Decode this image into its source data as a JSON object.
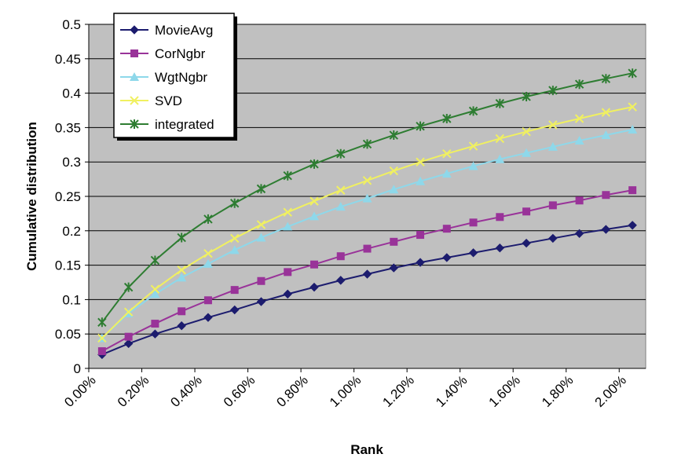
{
  "chart_data": {
    "type": "line",
    "xlabel": "Rank",
    "ylabel": "Cumulative distribution",
    "x_tick_labels": [
      "0.00%",
      "0.20%",
      "0.40%",
      "0.60%",
      "0.80%",
      "1.00%",
      "1.20%",
      "1.40%",
      "1.60%",
      "1.80%",
      "2.00%"
    ],
    "y_tick_labels": [
      "0",
      "0.05",
      "0.1",
      "0.15",
      "0.2",
      "0.25",
      "0.3",
      "0.35",
      "0.4",
      "0.45",
      "0.5"
    ],
    "xlim": [
      0,
      2.1
    ],
    "ylim": [
      0,
      0.5
    ],
    "x": [
      0.05,
      0.15,
      0.25,
      0.35,
      0.45,
      0.55,
      0.65,
      0.75,
      0.85,
      0.95,
      1.05,
      1.15,
      1.25,
      1.35,
      1.45,
      1.55,
      1.65,
      1.75,
      1.85,
      1.95,
      2.05
    ],
    "x_unit": "%",
    "grid": true,
    "legend_position": "top-left",
    "plot_background": "#c0c0c0",
    "series": [
      {
        "name": "MovieAvg",
        "color": "#1c1c6e",
        "marker": "diamond",
        "values": [
          0.02,
          0.036,
          0.05,
          0.062,
          0.074,
          0.085,
          0.097,
          0.108,
          0.118,
          0.128,
          0.137,
          0.146,
          0.154,
          0.161,
          0.168,
          0.175,
          0.182,
          0.189,
          0.196,
          0.202,
          0.208
        ]
      },
      {
        "name": "CorNgbr",
        "color": "#993399",
        "marker": "square",
        "values": [
          0.025,
          0.046,
          0.065,
          0.083,
          0.099,
          0.114,
          0.127,
          0.14,
          0.151,
          0.163,
          0.174,
          0.184,
          0.194,
          0.203,
          0.212,
          0.22,
          0.228,
          0.237,
          0.244,
          0.252,
          0.259
        ]
      },
      {
        "name": "WgtNgbr",
        "color": "#8ed8ea",
        "marker": "triangle",
        "values": [
          0.044,
          0.08,
          0.108,
          0.132,
          0.152,
          0.172,
          0.19,
          0.206,
          0.221,
          0.235,
          0.247,
          0.26,
          0.272,
          0.283,
          0.294,
          0.304,
          0.313,
          0.322,
          0.331,
          0.339,
          0.347
        ]
      },
      {
        "name": "SVD",
        "color": "#f0f060",
        "marker": "x",
        "values": [
          0.044,
          0.082,
          0.115,
          0.143,
          0.167,
          0.189,
          0.209,
          0.227,
          0.243,
          0.259,
          0.273,
          0.287,
          0.3,
          0.312,
          0.323,
          0.334,
          0.344,
          0.354,
          0.363,
          0.372,
          0.38
        ]
      },
      {
        "name": "integrated",
        "color": "#2e7d32",
        "marker": "asterisk",
        "values": [
          0.067,
          0.118,
          0.157,
          0.19,
          0.217,
          0.24,
          0.261,
          0.28,
          0.297,
          0.312,
          0.326,
          0.339,
          0.352,
          0.363,
          0.374,
          0.385,
          0.395,
          0.404,
          0.413,
          0.421,
          0.429
        ]
      }
    ]
  }
}
